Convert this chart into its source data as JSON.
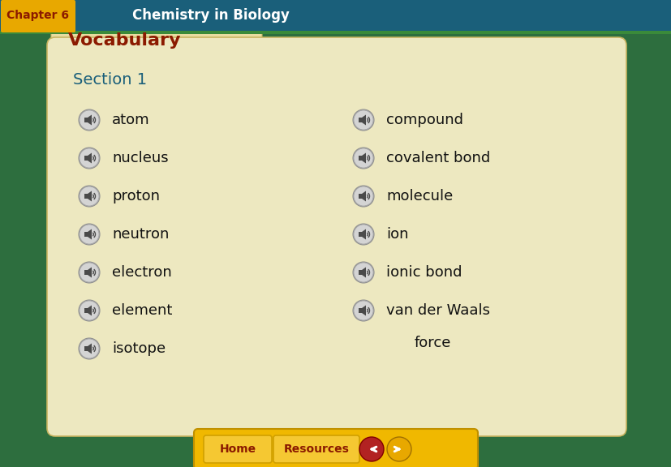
{
  "title_bar_color": "#1a5f7a",
  "title_bar_height": 38,
  "chapter_label": "Chapter 6",
  "chapter_label_bg": "#e8a800",
  "chapter_label_color": "#8b1a00",
  "chapter_title": "Chemistry in Biology",
  "chapter_title_color": "#ffffff",
  "outer_bg": "#2d6e3e",
  "folder_tab_color": "#e8dca0",
  "folder_body_color": "#ede8c0",
  "vocabulary_text": "Vocabulary",
  "vocabulary_color": "#8b1a00",
  "section_text": "Section 1",
  "section_color": "#1a5f7a",
  "left_terms": [
    "atom",
    "nucleus",
    "proton",
    "neutron",
    "electron",
    "element",
    "isotope"
  ],
  "right_terms": [
    "compound",
    "covalent bond",
    "molecule",
    "ion",
    "ionic bond",
    "van der Waals"
  ],
  "force_text": "force",
  "term_color": "#111111",
  "bottom_bar_color": "#f0b800",
  "home_btn_text": "Home",
  "resources_btn_text": "Resources",
  "home_btn_color": "#f5c832",
  "resources_btn_color": "#f5c832",
  "btn_text_color": "#8b1a00",
  "arrow_left_color": "#b22222",
  "arrow_right_color": "#e8a800"
}
